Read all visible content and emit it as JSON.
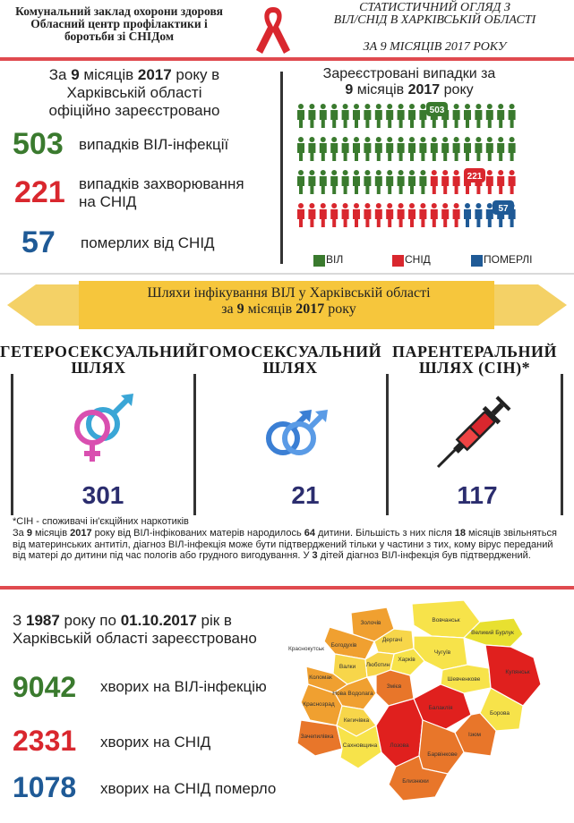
{
  "header": {
    "org_line1": "Комунальний заклад охорони здоровя",
    "org_line2": "Обласний центр профілактики і",
    "org_line3": "боротьби зі СНІДом",
    "title_line1": "СТАТИСТИЧНИЙ ОГЛЯД З",
    "title_line2": "ВІЛ/СНІД В ХАРКІВСЬКІЙ ОБЛАСТІ",
    "title_date": "ЗА 9 МІСЯЦІВ 2017 РОКУ"
  },
  "summary": {
    "intro_line1_pre": "За ",
    "intro_line1_b1": "9",
    "intro_line1_mid": " місяців ",
    "intro_line1_b2": "2017",
    "intro_line1_post": " року в",
    "intro_line2": "Харківській області",
    "intro_line3": "офіційно зареєстровано",
    "hiv_count": "503",
    "hiv_label": "випадків ВІЛ-інфекції",
    "aids_count": "221",
    "aids_label_line1": "випадків захворювання",
    "aids_label_line2": "на СНІД",
    "deaths_count": "57",
    "deaths_label": "померлих від СНІД"
  },
  "chart_data": {
    "type": "pictogram",
    "title_line1": "Зареєстровані випадки за",
    "title_line2_b1": "9",
    "title_line2_mid": " місяців ",
    "title_line2_b2": "2017",
    "title_line2_post": " року",
    "series": [
      {
        "name": "ВІЛ",
        "value": 503,
        "color": "#3a7a2e"
      },
      {
        "name": "СНІД",
        "value": 221,
        "color": "#d9272e"
      },
      {
        "name": "ПОМЕРЛІ",
        "value": 57,
        "color": "#1f5a96"
      }
    ]
  },
  "routes": {
    "banner_line1": "Шляхи інфікування ВІЛ у Харківській області",
    "banner_line2_pre": "за ",
    "banner_line2_b1": "9",
    "banner_line2_mid": " місяців ",
    "banner_line2_b2": "2017",
    "banner_line2_post": " року",
    "items": [
      {
        "title_line1": "ГЕТЕРОСЕКСУАЛЬНИЙ",
        "title_line2": "ШЛЯХ",
        "value": "301"
      },
      {
        "title_line1": "ГОМОСЕКСУАЛЬНИЙ",
        "title_line2": "ШЛЯХ",
        "value": "21"
      },
      {
        "title_line1": "ПАРЕНТЕРАЛЬНИЙ",
        "title_line2": "ШЛЯХ (СІН)*",
        "value": "117"
      }
    ]
  },
  "notes": {
    "footnote": "*СІН - споживачі ін'єкційних наркотиків",
    "p_pre": "За ",
    "p_b1": "9",
    "p_t1": " місяців ",
    "p_b2": "2017",
    "p_t2": " року від ВІЛ-інфікованих матерів народилось ",
    "p_b3": "64",
    "p_t3": " дитини. Більшість з них після ",
    "p_b4": "18",
    "p_t4": " місяців звільняться від материнських антитіл, діагноз ВІЛ-інфекція може бути підтверджений тільки у частини з тих, кому вірус переданий від матері до дитини під час пологів або грудного вигодування. У ",
    "p_b5": "3",
    "p_t5": " дітей діагноз ВІЛ-інфекція був підтверджений."
  },
  "cumulative": {
    "intro_pre": "З ",
    "intro_b1": "1987",
    "intro_mid": " року по ",
    "intro_b2": "01.10.2017",
    "intro_post": " рік в",
    "intro_line2": "Харківській області зареєстровано",
    "hiv_count": "9042",
    "hiv_label": "хворих на ВІЛ-інфекцію",
    "aids_count": "2331",
    "aids_label": "хворих на СНІД",
    "deaths_count": "1078",
    "deaths_label": "хворих на СНІД померло"
  },
  "map": {
    "districts": [
      "Золочів",
      "Богодухів",
      "Дергачі",
      "Вовчанськ",
      "Великий Бурлук",
      "Краснокутськ",
      "Валки",
      "Харків",
      "Чугуїв",
      "Люботин",
      "Коломак",
      "Нова Водолага",
      "Змієв",
      "Шевченкове",
      "Купянськ",
      "Краснозрад",
      "Кегичівка",
      "Балаклія",
      "Борова",
      "Зачепилівка",
      "Сахновщина",
      "Лозова",
      "Ізюм",
      "Барвінкове",
      "Близнюки"
    ]
  }
}
